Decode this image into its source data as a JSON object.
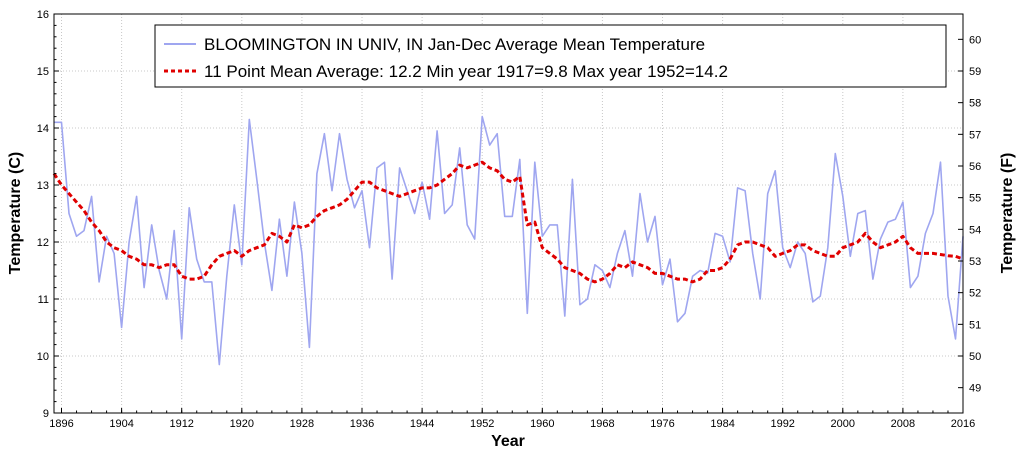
{
  "chart_data": {
    "type": "line",
    "title": "BLOOMINGTON IN UNIV, IN  Jan-Dec  Average Mean Temperature",
    "xlabel": "Year",
    "ylabel": "Temperature (C)",
    "ylabel_right": "Temperature (F)",
    "xlim": [
      1895,
      2016
    ],
    "ylim": [
      9,
      16
    ],
    "ylim_right_f": [
      48.2,
      60.8
    ],
    "grid": true,
    "legend_position": "top",
    "x_ticks": [
      "1896",
      "1904",
      "1912",
      "1920",
      "1928",
      "1936",
      "1944",
      "1952",
      "1960",
      "1968",
      "1976",
      "1984",
      "1992",
      "2000",
      "2008",
      "2016"
    ],
    "y_ticks": [
      "9",
      "10",
      "11",
      "12",
      "13",
      "14",
      "15",
      "16"
    ],
    "y_ticks_right": [
      "49",
      "50",
      "51",
      "52",
      "53",
      "54",
      "55",
      "56",
      "57",
      "58",
      "59",
      "60"
    ],
    "series": [
      {
        "name": "BLOOMINGTON IN UNIV, IN  Jan-Dec  Average Mean Temperature",
        "style": "solid",
        "color": "#9fa6f0",
        "x": [
          1895,
          1896,
          1897,
          1898,
          1899,
          1900,
          1901,
          1902,
          1903,
          1904,
          1905,
          1906,
          1907,
          1908,
          1909,
          1910,
          1911,
          1912,
          1913,
          1914,
          1915,
          1916,
          1917,
          1918,
          1919,
          1920,
          1921,
          1922,
          1923,
          1924,
          1925,
          1926,
          1927,
          1928,
          1929,
          1930,
          1931,
          1932,
          1933,
          1934,
          1935,
          1936,
          1937,
          1938,
          1939,
          1940,
          1941,
          1942,
          1943,
          1944,
          1945,
          1946,
          1947,
          1948,
          1949,
          1950,
          1951,
          1952,
          1953,
          1954,
          1955,
          1956,
          1957,
          1958,
          1959,
          1960,
          1961,
          1962,
          1963,
          1964,
          1965,
          1966,
          1967,
          1968,
          1969,
          1970,
          1971,
          1972,
          1973,
          1974,
          1975,
          1976,
          1977,
          1978,
          1979,
          1980,
          1981,
          1982,
          1983,
          1984,
          1985,
          1986,
          1987,
          1988,
          1989,
          1990,
          1991,
          1992,
          1993,
          1994,
          1995,
          1996,
          1997,
          1998,
          1999,
          2000,
          2001,
          2002,
          2003,
          2004,
          2005,
          2006,
          2007,
          2008,
          2009,
          2010,
          2011,
          2012,
          2013,
          2014,
          2015,
          2016
        ],
        "values": [
          14.1,
          14.1,
          12.5,
          12.1,
          12.2,
          12.8,
          11.3,
          12.1,
          11.8,
          10.5,
          12.0,
          12.8,
          11.2,
          12.3,
          11.5,
          11.0,
          12.2,
          10.3,
          12.6,
          11.7,
          11.3,
          11.3,
          9.85,
          11.4,
          12.65,
          11.6,
          14.15,
          13.1,
          12.0,
          11.15,
          12.4,
          11.4,
          12.7,
          11.8,
          10.15,
          13.2,
          13.9,
          12.9,
          13.9,
          13.1,
          12.6,
          12.9,
          11.9,
          13.3,
          13.4,
          11.35,
          13.3,
          12.9,
          12.5,
          13.05,
          12.4,
          13.95,
          12.5,
          12.65,
          13.65,
          12.3,
          12.05,
          14.2,
          13.7,
          13.9,
          12.45,
          12.45,
          13.45,
          10.75,
          13.4,
          12.1,
          12.3,
          12.3,
          10.7,
          13.1,
          10.9,
          11.0,
          11.6,
          11.5,
          11.2,
          11.8,
          12.2,
          11.4,
          12.85,
          12.0,
          12.45,
          11.25,
          11.7,
          10.6,
          10.75,
          11.4,
          11.5,
          11.45,
          12.15,
          12.1,
          11.65,
          12.95,
          12.9,
          11.8,
          11.0,
          12.85,
          13.25,
          11.9,
          11.55,
          12.0,
          11.8,
          10.95,
          11.05,
          11.9,
          13.55,
          12.8,
          11.75,
          12.5,
          12.55,
          11.35,
          12.05,
          12.35,
          12.4,
          12.7,
          11.2,
          11.4,
          12.15,
          12.5,
          13.4,
          11.05,
          10.3,
          12.1
        ]
      },
      {
        "name": "11 Point Mean  Average: 12.2  Min year 1917=9.8  Max year 1952=14.2",
        "style": "dashed",
        "color": "#e00000",
        "x": [
          1895,
          1896,
          1897,
          1898,
          1899,
          1900,
          1901,
          1902,
          1903,
          1904,
          1905,
          1906,
          1907,
          1908,
          1909,
          1910,
          1911,
          1912,
          1913,
          1914,
          1915,
          1916,
          1917,
          1918,
          1919,
          1920,
          1921,
          1922,
          1923,
          1924,
          1925,
          1926,
          1927,
          1928,
          1929,
          1930,
          1931,
          1932,
          1933,
          1934,
          1935,
          1936,
          1937,
          1938,
          1939,
          1940,
          1941,
          1942,
          1943,
          1944,
          1945,
          1946,
          1947,
          1948,
          1949,
          1950,
          1951,
          1952,
          1953,
          1954,
          1955,
          1956,
          1957,
          1958,
          1959,
          1960,
          1961,
          1962,
          1963,
          1964,
          1965,
          1966,
          1967,
          1968,
          1969,
          1970,
          1971,
          1972,
          1973,
          1974,
          1975,
          1976,
          1977,
          1978,
          1979,
          1980,
          1981,
          1982,
          1983,
          1984,
          1985,
          1986,
          1987,
          1988,
          1989,
          1990,
          1991,
          1992,
          1993,
          1994,
          1995,
          1996,
          1997,
          1998,
          1999,
          2000,
          2001,
          2002,
          2003,
          2004,
          2005,
          2006,
          2007,
          2008,
          2009,
          2010,
          2011,
          2012,
          2013,
          2014,
          2015,
          2016
        ],
        "values": [
          13.2,
          13.0,
          12.85,
          12.7,
          12.55,
          12.35,
          12.2,
          12.0,
          11.9,
          11.85,
          11.75,
          11.7,
          11.6,
          11.6,
          11.55,
          11.6,
          11.6,
          11.4,
          11.35,
          11.35,
          11.4,
          11.6,
          11.75,
          11.8,
          11.85,
          11.75,
          11.85,
          11.9,
          11.95,
          12.15,
          12.1,
          12.0,
          12.3,
          12.25,
          12.3,
          12.45,
          12.55,
          12.6,
          12.65,
          12.75,
          12.9,
          13.05,
          13.05,
          12.95,
          12.9,
          12.85,
          12.8,
          12.85,
          12.9,
          12.95,
          12.95,
          13.0,
          13.1,
          13.2,
          13.35,
          13.3,
          13.35,
          13.4,
          13.3,
          13.25,
          13.1,
          13.05,
          13.15,
          12.3,
          12.35,
          11.9,
          11.8,
          11.7,
          11.55,
          11.5,
          11.45,
          11.35,
          11.3,
          11.35,
          11.45,
          11.6,
          11.55,
          11.65,
          11.6,
          11.55,
          11.45,
          11.45,
          11.4,
          11.35,
          11.35,
          11.3,
          11.35,
          11.5,
          11.5,
          11.55,
          11.7,
          11.95,
          12.0,
          12.0,
          11.95,
          11.9,
          11.75,
          11.8,
          11.85,
          11.95,
          11.95,
          11.85,
          11.8,
          11.75,
          11.75,
          11.9,
          11.95,
          12.0,
          12.15,
          12.0,
          11.9,
          11.95,
          12.0,
          12.1,
          11.9,
          11.8,
          11.8,
          11.8,
          11.78,
          11.76,
          11.75,
          11.7
        ]
      }
    ]
  }
}
